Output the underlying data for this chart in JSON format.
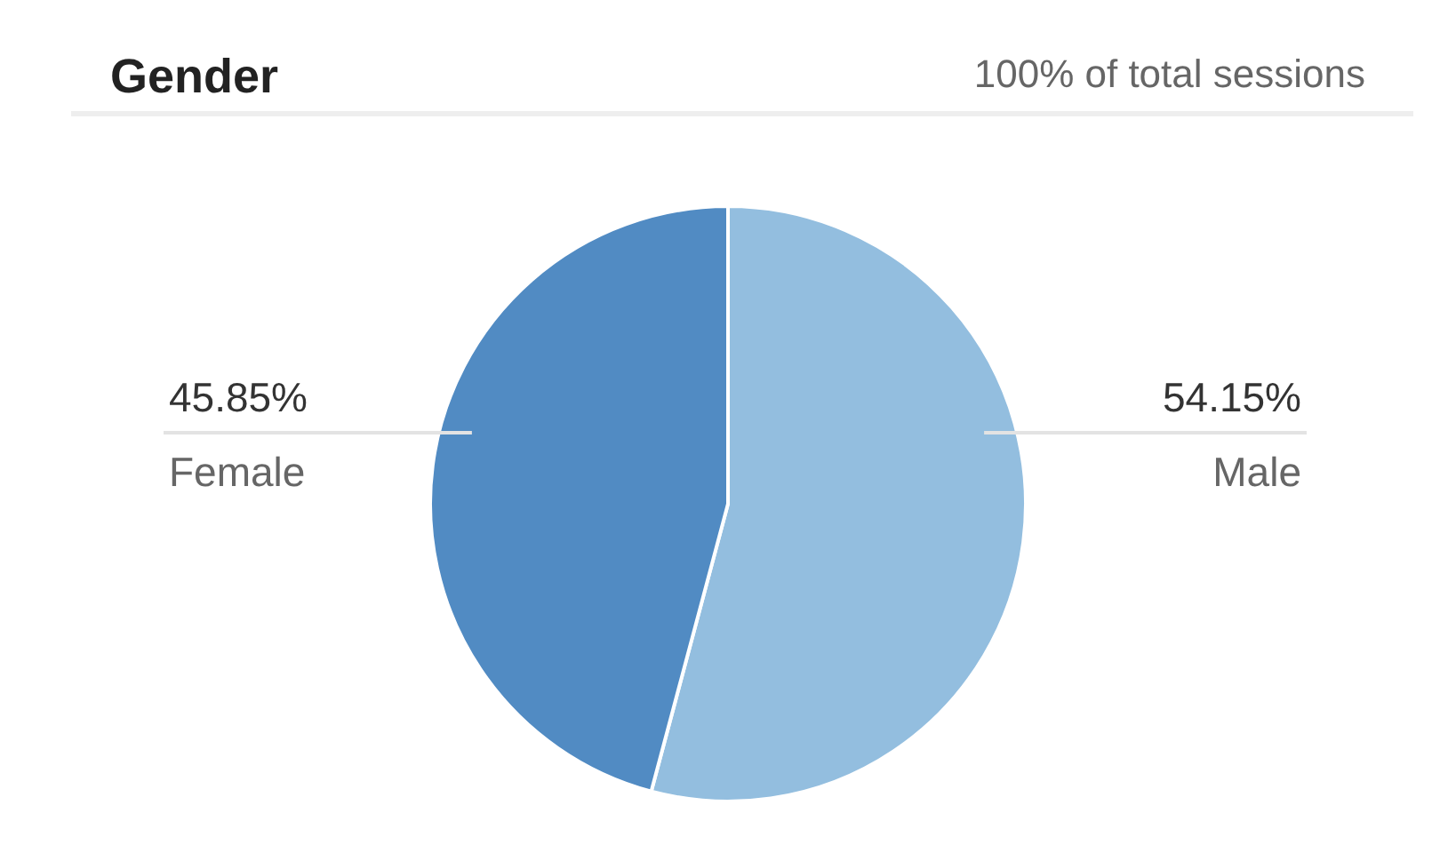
{
  "chart_data": {
    "type": "pie",
    "title": "Gender",
    "subtitle": "100% of total sessions",
    "categories": [
      "Male",
      "Female"
    ],
    "values": [
      54.15,
      45.85
    ],
    "value_labels": [
      "54.15%",
      "45.85%"
    ],
    "colors": [
      "#93bedf",
      "#518bc3"
    ],
    "legend": false
  }
}
